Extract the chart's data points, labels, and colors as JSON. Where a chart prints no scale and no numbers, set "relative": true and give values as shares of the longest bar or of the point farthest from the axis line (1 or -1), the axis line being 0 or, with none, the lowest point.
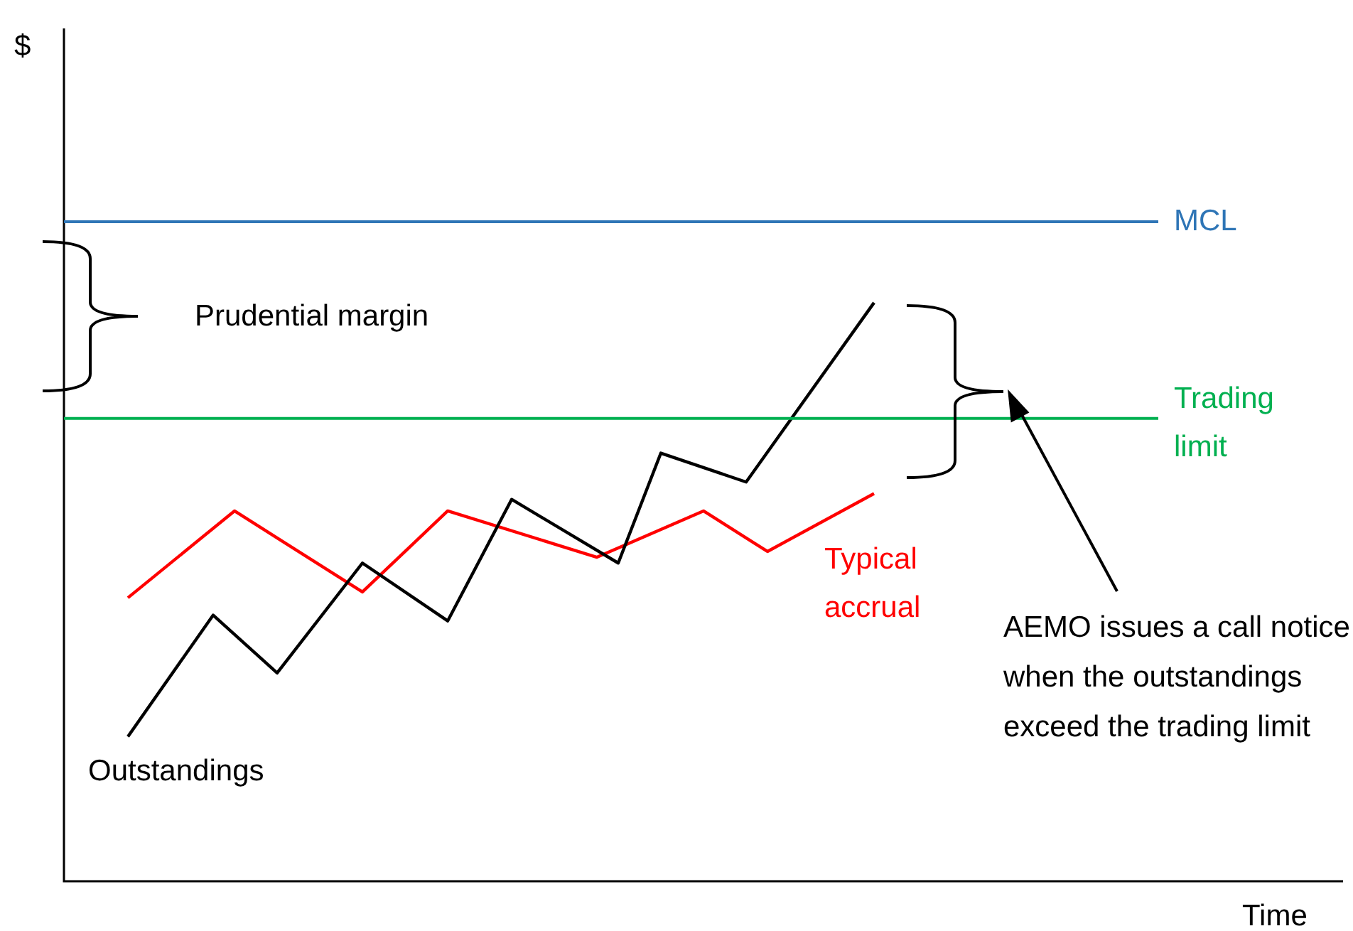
{
  "chart_data": {
    "type": "line",
    "relative": true,
    "xlabel": "Time",
    "legend": false,
    "marker": "none",
    "line_style": "solid",
    "categories": [
      null,
      null,
      null,
      null,
      null,
      null,
      null,
      null,
      null,
      null,
      null,
      null,
      null,
      null,
      null,
      null,
      null,
      null,
      null,
      null,
      null,
      null,
      null,
      null,
      null,
      null,
      null,
      null,
      null,
      null,
      null,
      null,
      null,
      null,
      null,
      null,
      null,
      null,
      null,
      null,
      null,
      null,
      null,
      null,
      null,
      null,
      null,
      null,
      null,
      null,
      null,
      null,
      null,
      null,
      null,
      null,
      null,
      null,
      null,
      null,
      null
    ],
    "series": [
      {
        "name": "Outstandings",
        "color": "#000000",
        "values": [
          null,
          null,
          null,
          0.25,
          null,
          null,
          null,
          0.46,
          null,
          null,
          0.36,
          null,
          null,
          null,
          0.55,
          null,
          null,
          null,
          0.45,
          null,
          null,
          0.66,
          null,
          null,
          null,
          null,
          0.55,
          null,
          0.74,
          null,
          null,
          null,
          0.69,
          null,
          null,
          null,
          null,
          null,
          1,
          null,
          null,
          null,
          null,
          null,
          null,
          null,
          null,
          null,
          null,
          null,
          null,
          null,
          null,
          null,
          null,
          null,
          null,
          null,
          null,
          null,
          null
        ]
      },
      {
        "name": "Typical accrual",
        "color": "#ff0000",
        "values": [
          null,
          null,
          null,
          0.49,
          null,
          null,
          null,
          null,
          0.64,
          null,
          null,
          null,
          null,
          null,
          0.5,
          null,
          null,
          null,
          0.64,
          null,
          null,
          null,
          null,
          null,
          null,
          0.56,
          null,
          null,
          null,
          null,
          0.64,
          null,
          null,
          0.57,
          null,
          null,
          null,
          null,
          0.67,
          null,
          null,
          null,
          null,
          null,
          null,
          null,
          null,
          null,
          null,
          null,
          null,
          null,
          null,
          null,
          null,
          null,
          null,
          null,
          null,
          null,
          null
        ]
      }
    ],
    "ref_lines": [
      {
        "axis": "y",
        "value": 1.14,
        "label": "MCL",
        "color": "#2e75b6"
      },
      {
        "axis": "y",
        "value": 0.8,
        "label": "Trading limit",
        "color": "#00b050"
      }
    ],
    "annotations": [
      "Prudential margin",
      "AEMO issues a call notice when the outstandings exceed the trading limit",
      "$"
    ]
  }
}
